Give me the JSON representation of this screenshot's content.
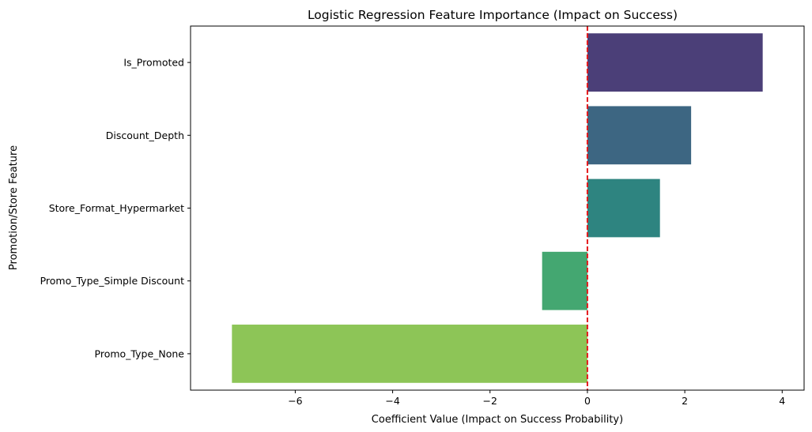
{
  "chart_data": {
    "type": "bar",
    "orientation": "horizontal",
    "title": "Logistic Regression Feature Importance (Impact on Success)",
    "xlabel": "Coefficient Value (Impact on Success Probability)",
    "ylabel": "Promotion/Store Feature",
    "categories": [
      "Is_Promoted",
      "Discount_Depth",
      "Store_Format_Hypermarket",
      "Promo_Type_Simple Discount",
      "Promo_Type_None"
    ],
    "values": [
      3.6,
      2.13,
      1.49,
      -0.93,
      -7.3
    ],
    "colors": [
      "#4b3f78",
      "#3d6682",
      "#2e8480",
      "#44a771",
      "#8dc557"
    ],
    "xlim": [
      -8.15,
      4.45
    ],
    "xticks": [
      -6,
      -4,
      -2,
      0,
      2,
      4
    ],
    "xtick_labels": [
      "−6",
      "−4",
      "−2",
      "0",
      "2",
      "4"
    ],
    "reference_line": {
      "x": 0,
      "color": "#e41a1c",
      "style": "dashed"
    },
    "grid": false
  }
}
